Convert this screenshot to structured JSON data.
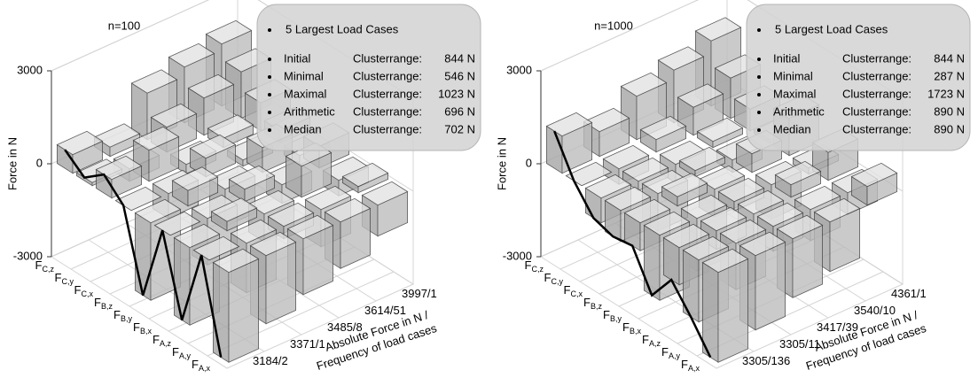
{
  "chart_data": [
    {
      "type": "bar3d",
      "title": "n=100",
      "ylabel": "Force in N",
      "xlabel": [
        "Absolute Force in N /",
        "Frequency of load cases"
      ],
      "categories": [
        "FC,z",
        "FC,y",
        "FC,x",
        "FB,z",
        "FB,y",
        "FB,x",
        "FA,z",
        "FA,y",
        "FA,x"
      ],
      "series": [
        {
          "name": "3184/2",
          "values": [
            600,
            100,
            600,
            0,
            -2500,
            0,
            -2500,
            0,
            -2900
          ]
        },
        {
          "name": "3371/1",
          "values": [
            300,
            -400,
            1000,
            -800,
            500,
            -1500,
            300,
            -1600,
            -2200
          ]
        },
        {
          "name": "3485/8",
          "values": [
            1500,
            800,
            -300,
            600,
            -1200,
            400,
            -900,
            -400,
            -1800
          ]
        },
        {
          "name": "3614/51",
          "values": [
            1800,
            1200,
            300,
            -200,
            800,
            -600,
            1000,
            -1200,
            -1500
          ]
        },
        {
          "name": "3997/1",
          "values": [
            2000,
            1500,
            900,
            400,
            -300,
            700,
            -500,
            200,
            -1000
          ]
        }
      ],
      "ylim": [
        -3000,
        3000
      ],
      "yticks": [
        -3000,
        0,
        3000
      ],
      "grid": true,
      "color": "#bdbdbd",
      "highlight_series": 0,
      "highlight_color": "#000000",
      "legend": {
        "title": "5 Largest  Load Cases",
        "rows": [
          [
            "Initial",
            "Clusterrange:",
            "844 N"
          ],
          [
            "Minimal",
            "Clusterrange:",
            "546 N"
          ],
          [
            "Maximal",
            "Clusterrange:",
            "1023 N"
          ],
          [
            "Arithmetic",
            "Clusterrange:",
            "696 N"
          ],
          [
            "Median",
            "Clusterrange:",
            "702 N"
          ]
        ]
      }
    },
    {
      "type": "bar3d",
      "title": "n=1000",
      "ylabel": "Force in N",
      "xlabel": [
        "Absolute Force in N /",
        "Frequency of load cases"
      ],
      "categories": [
        "FC,z",
        "FC,y",
        "FC,x",
        "FB,z",
        "FB,y",
        "FB,x",
        "FA,z",
        "FA,y",
        "FA,x"
      ],
      "series": [
        {
          "name": "3305/136",
          "values": [
            1200,
            0,
            -800,
            -1000,
            -900,
            -2100,
            -1200,
            -2000,
            -2900
          ]
        },
        {
          "name": "3305/11",
          "values": [
            800,
            -500,
            -300,
            -1200,
            300,
            -1700,
            -600,
            -1500,
            -2400
          ]
        },
        {
          "name": "3417/39",
          "values": [
            1400,
            400,
            -600,
            200,
            -900,
            -300,
            -1300,
            -800,
            -1900
          ]
        },
        {
          "name": "3540/10",
          "values": [
            1700,
            900,
            200,
            -400,
            600,
            -1100,
            400,
            -1000,
            -1600
          ]
        },
        {
          "name": "4361/1",
          "values": [
            2100,
            1300,
            700,
            100,
            1200,
            -200,
            900,
            -700,
            600
          ]
        }
      ],
      "ylim": [
        -3000,
        3000
      ],
      "yticks": [
        -3000,
        0,
        3000
      ],
      "grid": true,
      "color": "#bdbdbd",
      "highlight_series": 0,
      "highlight_color": "#000000",
      "legend": {
        "title": "5 Largest  Load Cases",
        "rows": [
          [
            "Initial",
            "Clusterrange:",
            "844 N"
          ],
          [
            "Minimal",
            "Clusterrange:",
            "287 N"
          ],
          [
            "Maximal",
            "Clusterrange:",
            "1723 N"
          ],
          [
            "Arithmetic",
            "Clusterrange:",
            "890 N"
          ],
          [
            "Median",
            "Clusterrange:",
            "890 N"
          ]
        ]
      }
    }
  ]
}
